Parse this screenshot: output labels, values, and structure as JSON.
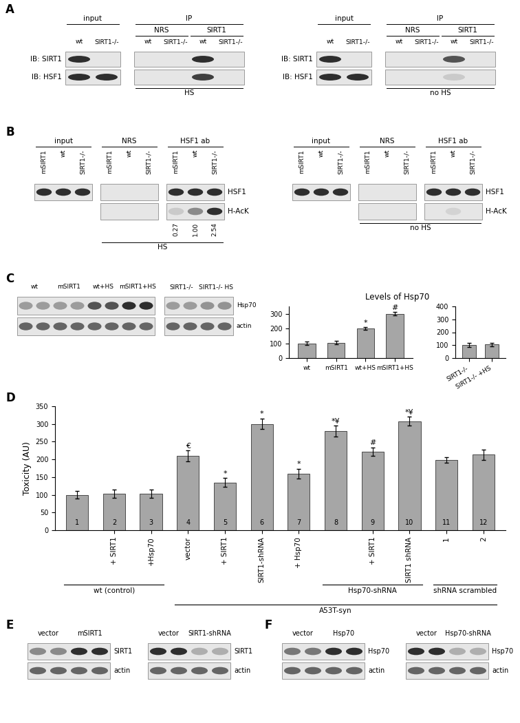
{
  "panel_labels": [
    "A",
    "B",
    "C",
    "D",
    "E",
    "F"
  ],
  "blots": {
    "A_HS": {
      "boxes": [
        [
          0,
          1
        ],
        [
          2,
          5
        ]
      ],
      "headers": [
        {
          "text": "input",
          "lanes": [
            0,
            1
          ]
        },
        {
          "text": "IP",
          "lanes": [
            2,
            5
          ]
        }
      ],
      "groups": [
        {
          "text": "NRS",
          "lanes": [
            2,
            3
          ]
        },
        {
          "text": "SIRT1",
          "lanes": [
            4,
            5
          ]
        }
      ],
      "lanes": [
        "wt",
        "SIRT1-/-",
        "wt",
        "SIRT1-/-",
        "wt",
        "SIRT1-/-"
      ],
      "rows": [
        {
          "label": "IB: SIRT1",
          "bands": [
            1,
            0,
            0,
            0,
            1,
            0
          ]
        },
        {
          "label": "IB: HSF1",
          "bands": [
            1,
            1,
            0,
            0,
            0.9,
            0
          ]
        }
      ],
      "footer": {
        "text": "HS",
        "lanes": [
          2,
          5
        ]
      }
    },
    "A_noHS": {
      "boxes": [
        [
          0,
          1
        ],
        [
          2,
          5
        ]
      ],
      "headers": [
        {
          "text": "input",
          "lanes": [
            0,
            1
          ]
        },
        {
          "text": "IP",
          "lanes": [
            2,
            5
          ]
        }
      ],
      "groups": [
        {
          "text": "NRS",
          "lanes": [
            2,
            3
          ]
        },
        {
          "text": "SIRT1",
          "lanes": [
            4,
            5
          ]
        }
      ],
      "lanes": [
        "wt",
        "SIRT1-/-",
        "wt",
        "SIRT1-/-",
        "wt",
        "SIRT1-/-"
      ],
      "rows": [
        {
          "label": "IB: SIRT1",
          "bands": [
            1,
            0,
            0,
            0,
            0.8,
            0
          ]
        },
        {
          "label": "IB: HSF1",
          "bands": [
            1,
            1,
            0,
            0,
            0.15,
            0
          ]
        }
      ],
      "footer": {
        "text": "no HS",
        "lanes": [
          2,
          5
        ]
      }
    },
    "B_HS": {
      "boxes": [
        [
          0,
          2
        ],
        [
          3,
          5
        ],
        [
          6,
          8
        ]
      ],
      "headers": [
        {
          "text": "input",
          "lanes": [
            0,
            2
          ]
        },
        {
          "text": "NRS",
          "lanes": [
            3,
            5
          ]
        },
        {
          "text": "HSF1 ab",
          "lanes": [
            6,
            8
          ]
        }
      ],
      "lanes": [
        "mSIRT1",
        "wt",
        "SIRT1-/-",
        "mSIRT1",
        "wt",
        "SIRT1-/-",
        "mSIRT1",
        "wt",
        "SIRT1-/-"
      ],
      "rows": [
        {
          "label": "HSF1",
          "bands": [
            1,
            1,
            1,
            0,
            0,
            0,
            1,
            1,
            1
          ]
        },
        {
          "label": "H-AcK",
          "bands": [
            null,
            null,
            null,
            0,
            0,
            0,
            0.15,
            0.5,
            1
          ]
        }
      ],
      "quant": {
        "lanes": [
          6,
          7,
          8
        ],
        "texts": [
          "0.27",
          "1.00",
          "2.54"
        ]
      },
      "footer": {
        "text": "HS",
        "lanes": [
          3,
          8
        ]
      }
    },
    "B_noHS": {
      "boxes": [
        [
          0,
          2
        ],
        [
          3,
          5
        ],
        [
          6,
          8
        ]
      ],
      "headers": [
        {
          "text": "input",
          "lanes": [
            0,
            2
          ]
        },
        {
          "text": "NRS",
          "lanes": [
            3,
            5
          ]
        },
        {
          "text": "HSF1 ab",
          "lanes": [
            6,
            8
          ]
        }
      ],
      "lanes": [
        "mSIRT1",
        "wt",
        "SIRT1-/-",
        "mSIRT1",
        "wt",
        "SIRT1-/-",
        "mSIRT1",
        "wt",
        "SIRT1-/-"
      ],
      "rows": [
        {
          "label": "HSF1",
          "bands": [
            1,
            1,
            1,
            0,
            0,
            0,
            1,
            1,
            1
          ]
        },
        {
          "label": "H-AcK",
          "bands": [
            null,
            null,
            null,
            0,
            0,
            0,
            0,
            0.1,
            0
          ]
        }
      ],
      "footer": {
        "text": "no HS",
        "lanes": [
          3,
          8
        ]
      }
    },
    "C": {
      "boxes": [
        [
          0,
          7
        ],
        [
          8,
          11
        ]
      ],
      "groups": [
        {
          "text": "wt",
          "lanes": [
            0,
            1
          ]
        },
        {
          "text": "mSIRT1",
          "lanes": [
            2,
            3
          ]
        },
        {
          "text": "wt+HS",
          "lanes": [
            4,
            5
          ]
        },
        {
          "text": "mSIRT1+HS",
          "lanes": [
            6,
            7
          ]
        },
        {
          "text": "SIRT1-/-",
          "lanes": [
            8,
            9
          ]
        },
        {
          "text": "SIRT1-/- HS",
          "lanes": [
            10,
            11
          ]
        }
      ],
      "lanes": [
        null,
        null,
        null,
        null,
        null,
        null,
        null,
        null,
        null,
        null,
        null,
        null
      ],
      "rows": [
        {
          "label": "Hsp70",
          "bands": [
            0.4,
            0.4,
            0.4,
            0.4,
            0.8,
            0.8,
            1,
            1,
            0.4,
            0.4,
            0.45,
            0.45
          ]
        },
        {
          "label": "actin",
          "bands": [
            0.7,
            0.7,
            0.7,
            0.7,
            0.7,
            0.7,
            0.7,
            0.7,
            0.7,
            0.7,
            0.7,
            0.7
          ]
        }
      ]
    },
    "E_overexpression": {
      "boxes": [
        [
          0,
          3
        ]
      ],
      "groups": [
        {
          "text": "vector",
          "lanes": [
            0,
            1
          ]
        },
        {
          "text": "mSIRT1",
          "lanes": [
            2,
            3
          ]
        }
      ],
      "lanes": [
        null,
        null,
        null,
        null
      ],
      "rows": [
        {
          "label": "SIRT1",
          "bands": [
            0.5,
            0.5,
            1,
            1
          ]
        },
        {
          "label": "actin",
          "bands": [
            0.7,
            0.7,
            0.7,
            0.7
          ]
        }
      ]
    },
    "E_knockdown": {
      "boxes": [
        [
          0,
          3
        ]
      ],
      "groups": [
        {
          "text": "vector",
          "lanes": [
            0,
            1
          ]
        },
        {
          "text": "SIRT1-shRNA",
          "lanes": [
            2,
            3
          ]
        }
      ],
      "lanes": [
        null,
        null,
        null,
        null
      ],
      "rows": [
        {
          "label": "SIRT1",
          "bands": [
            1,
            1,
            0.3,
            0.3
          ]
        },
        {
          "label": "actin",
          "bands": [
            0.7,
            0.7,
            0.7,
            0.7
          ]
        }
      ]
    },
    "F_overexpression": {
      "boxes": [
        [
          0,
          3
        ]
      ],
      "groups": [
        {
          "text": "vector",
          "lanes": [
            0,
            1
          ]
        },
        {
          "text": "Hsp70",
          "lanes": [
            2,
            3
          ]
        }
      ],
      "lanes": [
        null,
        null,
        null,
        null
      ],
      "rows": [
        {
          "label": "Hsp70",
          "bands": [
            0.6,
            0.6,
            1,
            1
          ]
        },
        {
          "label": "actin",
          "bands": [
            0.7,
            0.7,
            0.7,
            0.7
          ]
        }
      ]
    },
    "F_knockdown": {
      "boxes": [
        [
          0,
          3
        ]
      ],
      "groups": [
        {
          "text": "vector",
          "lanes": [
            0,
            1
          ]
        },
        {
          "text": "Hsp70-shRNA",
          "lanes": [
            2,
            3
          ]
        }
      ],
      "lanes": [
        null,
        null,
        null,
        null
      ],
      "rows": [
        {
          "label": "Hsp70",
          "bands": [
            1,
            1,
            0.3,
            0.3
          ]
        },
        {
          "label": "actin",
          "bands": [
            0.7,
            0.7,
            0.7,
            0.7
          ]
        }
      ]
    }
  },
  "chart_data": [
    {
      "type": "bar",
      "title": "Levels of Hsp70",
      "categories": [
        "wt",
        "mSIRT1",
        "wt+HS",
        "mSIRT1+HS"
      ],
      "values": [
        100,
        105,
        200,
        300
      ],
      "errors": [
        12,
        12,
        10,
        12
      ],
      "annotations": [
        null,
        null,
        "*",
        "#"
      ],
      "color": "#a6a6a6",
      "ylim": [
        0,
        350
      ],
      "yticks": [
        0,
        100,
        200,
        300
      ]
    },
    {
      "type": "bar",
      "categories": [
        "SIRT1-/-",
        "SIRT1-/- +HS"
      ],
      "values": [
        100,
        105
      ],
      "errors": [
        15,
        12
      ],
      "annotations": [
        null,
        null
      ],
      "color": "#a6a6a6",
      "ylim": [
        0,
        400
      ],
      "yticks": [
        0,
        100,
        200,
        300,
        400
      ]
    },
    {
      "type": "bar",
      "y_label": "Toxicity (AU)",
      "categories": [
        null,
        "+ SIRT1",
        "+Hsp70",
        "vector",
        "+ SIRT1",
        "SIRT1-shRNA",
        "+ Hsp70",
        null,
        "+ SIRT1",
        "SIRT1 shRNA",
        "1",
        "2"
      ],
      "bar_numbers": [
        1,
        2,
        3,
        4,
        5,
        6,
        7,
        8,
        9,
        10,
        11,
        12
      ],
      "values": [
        100,
        103,
        103,
        210,
        135,
        300,
        160,
        280,
        222,
        308,
        198,
        213
      ],
      "errors": [
        10,
        12,
        12,
        15,
        12,
        15,
        14,
        15,
        12,
        12,
        8,
        15
      ],
      "annotations": [
        null,
        null,
        null,
        "€",
        "*",
        "*",
        "*",
        "*¥",
        "#",
        "*¥",
        null,
        null
      ],
      "color": "#a6a6a6",
      "ylim": [
        0,
        350
      ],
      "yticks": [
        0,
        50,
        100,
        150,
        200,
        250,
        300,
        350
      ],
      "groups": [
        {
          "label": "wt (control)",
          "members": [
            0,
            2
          ]
        },
        {
          "label": "Hsp70-shRNA",
          "members": [
            7,
            9
          ]
        },
        {
          "label": "shRNA scrambled",
          "members": [
            10,
            11
          ]
        },
        {
          "label": "A53T-syn",
          "members": [
            3,
            11
          ]
        }
      ]
    }
  ]
}
